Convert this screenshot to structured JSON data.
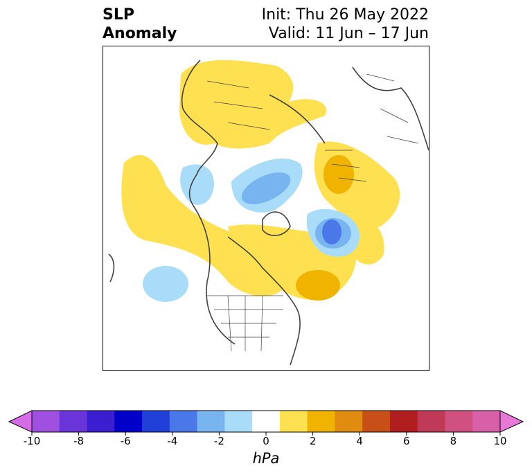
{
  "title": {
    "left_line1": "SLP",
    "left_line2": "Anomaly",
    "right_line1": "Init: Thu 26 May 2022",
    "right_line2": "Valid: 11 Jun – 17 Jun"
  },
  "colorbar": {
    "unit": "hPa",
    "ticks": [
      "-10",
      "-8",
      "-6",
      "-4",
      "-2",
      "0",
      "2",
      "4",
      "6",
      "8",
      "10"
    ],
    "colors": [
      "#d66be8",
      "#a050e0",
      "#6a35d8",
      "#3a1ed0",
      "#0000c8",
      "#2040d8",
      "#4a78e8",
      "#78b4f0",
      "#a8dcf8",
      "#ffffff",
      "#ffe050",
      "#f0b400",
      "#e08c10",
      "#c85018",
      "#b01e20",
      "#c03a58",
      "#d05080",
      "#d860a8",
      "#e878d8"
    ]
  }
}
